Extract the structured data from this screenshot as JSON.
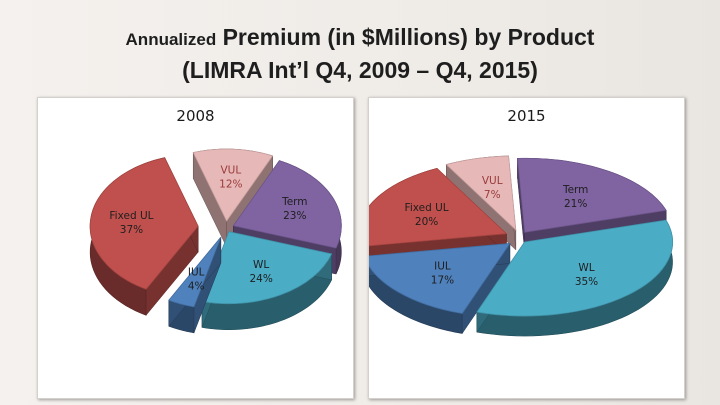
{
  "title": {
    "line1_small": "Annualized",
    "line1_rest": "Premium (in $Millions) by Product",
    "line2": "(LIMRA Int’l Q4, 2009 – Q4, 2015)"
  },
  "colors": {
    "Fixed UL": "#c0504d",
    "VUL": "#e6b9b8",
    "Term": "#8064a2",
    "WL": "#4bacc6",
    "IUL": "#4f81bd"
  },
  "chart_data": [
    {
      "type": "pie",
      "title": "2008",
      "slices": [
        {
          "label": "VUL",
          "value": 12,
          "display": "12%"
        },
        {
          "label": "Term",
          "value": 23,
          "display": "23%"
        },
        {
          "label": "WL",
          "value": 24,
          "display": "24%"
        },
        {
          "label": "IUL",
          "value": 4,
          "display": "4%"
        },
        {
          "label": "Fixed UL",
          "value": 37,
          "display": "37%"
        }
      ]
    },
    {
      "type": "pie",
      "title": "2015",
      "slices": [
        {
          "label": "VUL",
          "value": 7,
          "display": "7%"
        },
        {
          "label": "Term",
          "value": 21,
          "display": "21%"
        },
        {
          "label": "WL",
          "value": 35,
          "display": "35%"
        },
        {
          "label": "IUL",
          "value": 17,
          "display": "17%"
        },
        {
          "label": "Fixed UL",
          "value": 20,
          "display": "20%"
        }
      ]
    }
  ]
}
